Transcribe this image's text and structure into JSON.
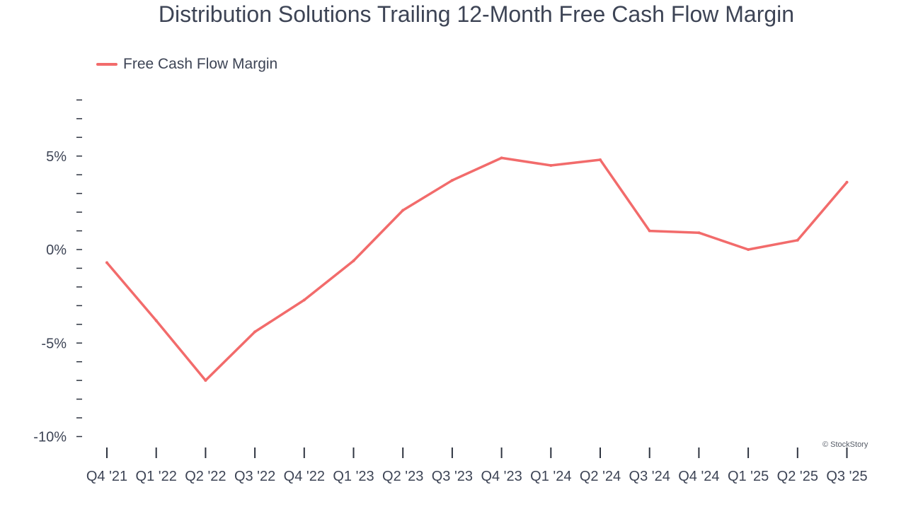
{
  "chart_data": {
    "type": "line",
    "title": "Distribution Solutions Trailing 12-Month Free Cash Flow Margin",
    "xlabel": "",
    "ylabel": "",
    "categories": [
      "Q4 '21",
      "Q1 '22",
      "Q2 '22",
      "Q3 '22",
      "Q4 '22",
      "Q1 '23",
      "Q2 '23",
      "Q3 '23",
      "Q4 '23",
      "Q1 '24",
      "Q2 '24",
      "Q3 '24",
      "Q4 '24",
      "Q1 '25",
      "Q2 '25",
      "Q3 '25"
    ],
    "series": [
      {
        "name": "Free Cash Flow Margin",
        "color": "#f26b6b",
        "values": [
          -0.7,
          -3.8,
          -7.0,
          -4.4,
          -2.7,
          -0.6,
          2.1,
          3.7,
          4.9,
          4.5,
          4.8,
          1.0,
          0.9,
          0.0,
          0.5,
          3.6
        ]
      }
    ],
    "y_ticks": [
      -10,
      -5,
      0,
      5
    ],
    "y_tick_labels": [
      "-10%",
      "-5%",
      "0%",
      "5%"
    ],
    "ylim": [
      -10,
      8
    ],
    "y_minor_step": 1,
    "grid": false,
    "legend_position": "top-left"
  },
  "watermark": "© StockStory"
}
